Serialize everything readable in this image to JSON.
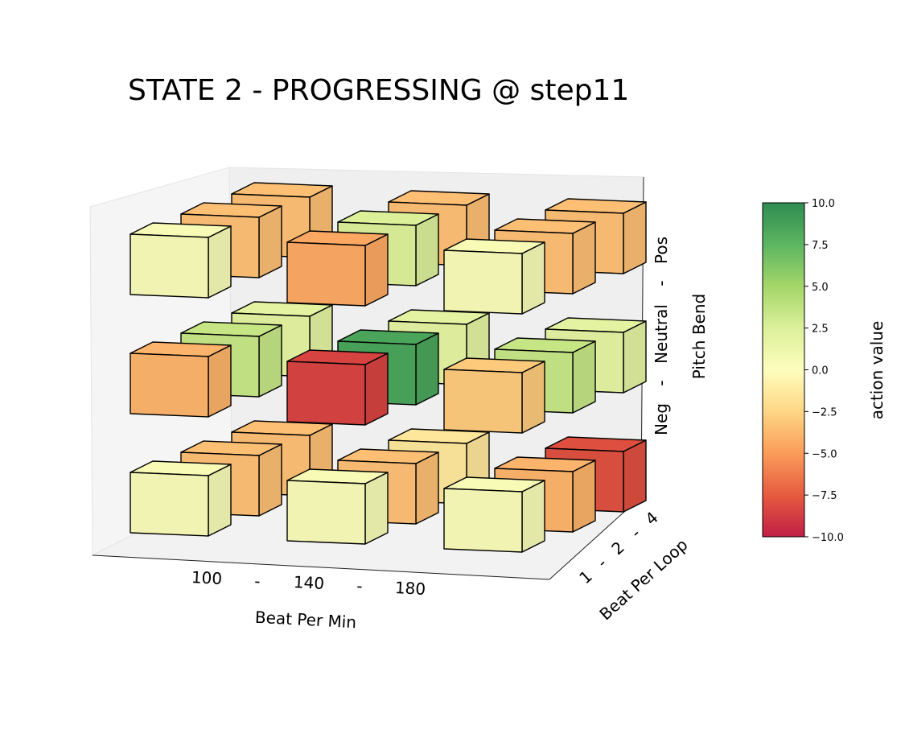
{
  "chart_data": {
    "type": "bar3d",
    "title": "STATE 2 - PROGRESSING @ step11",
    "xlabel": "Beat Per Min",
    "ylabel": "Beat Per Loop",
    "zlabel": "Pitch Bend",
    "x_ticks": [
      "100",
      "-",
      "140",
      "-",
      "180"
    ],
    "y_ticks": [
      "1",
      "-",
      "2",
      "-",
      "4"
    ],
    "z_ticks": [
      "Neg",
      "-",
      "Neutral",
      "-",
      "Pos"
    ],
    "x_categories": [
      "100",
      "140",
      "180"
    ],
    "y_categories": [
      "1",
      "2",
      "4"
    ],
    "z_categories": [
      "Neg",
      "Neutral",
      "Pos"
    ],
    "colorbar": {
      "label": "action value",
      "range": [
        -10,
        10
      ],
      "ticks": [
        "10.0",
        "7.5",
        "5.0",
        "2.5",
        "0.0",
        "−2.5",
        "−5.0",
        "−7.5",
        "−10.0"
      ],
      "colormap": "RdYlGn"
    },
    "cells": [
      {
        "bpm": "100",
        "bpl": "1",
        "pitch": "Neg",
        "value": 0.5
      },
      {
        "bpm": "100",
        "bpl": "2",
        "pitch": "Neg",
        "value": -3.5
      },
      {
        "bpm": "100",
        "bpl": "4",
        "pitch": "Neg",
        "value": -3.5
      },
      {
        "bpm": "140",
        "bpl": "1",
        "pitch": "Neg",
        "value": 0.5
      },
      {
        "bpm": "140",
        "bpl": "2",
        "pitch": "Neg",
        "value": -3.5
      },
      {
        "bpm": "140",
        "bpl": "4",
        "pitch": "Neg",
        "value": -1.5
      },
      {
        "bpm": "180",
        "bpl": "1",
        "pitch": "Neg",
        "value": 0.5
      },
      {
        "bpm": "180",
        "bpl": "2",
        "pitch": "Neg",
        "value": -4.0
      },
      {
        "bpm": "180",
        "bpl": "4",
        "pitch": "Neg",
        "value": -8.0
      },
      {
        "bpm": "100",
        "bpl": "1",
        "pitch": "Neutral",
        "value": -4.0
      },
      {
        "bpm": "100",
        "bpl": "2",
        "pitch": "Neutral",
        "value": 3.5
      },
      {
        "bpm": "100",
        "bpl": "4",
        "pitch": "Neutral",
        "value": 2.0
      },
      {
        "bpm": "140",
        "bpl": "1",
        "pitch": "Neutral",
        "value": -8.5
      },
      {
        "bpm": "140",
        "bpl": "2",
        "pitch": "Neutral",
        "value": 8.5
      },
      {
        "bpm": "140",
        "bpl": "4",
        "pitch": "Neutral",
        "value": 2.0
      },
      {
        "bpm": "180",
        "bpl": "1",
        "pitch": "Neutral",
        "value": -3.0
      },
      {
        "bpm": "180",
        "bpl": "2",
        "pitch": "Neutral",
        "value": 3.5
      },
      {
        "bpm": "180",
        "bpl": "4",
        "pitch": "Neutral",
        "value": 2.0
      },
      {
        "bpm": "100",
        "bpl": "1",
        "pitch": "Pos",
        "value": 0.5
      },
      {
        "bpm": "100",
        "bpl": "2",
        "pitch": "Pos",
        "value": -3.5
      },
      {
        "bpm": "100",
        "bpl": "4",
        "pitch": "Pos",
        "value": -3.5
      },
      {
        "bpm": "140",
        "bpl": "1",
        "pitch": "Pos",
        "value": -4.5
      },
      {
        "bpm": "140",
        "bpl": "2",
        "pitch": "Pos",
        "value": 2.5
      },
      {
        "bpm": "140",
        "bpl": "4",
        "pitch": "Pos",
        "value": -3.5
      },
      {
        "bpm": "180",
        "bpl": "1",
        "pitch": "Pos",
        "value": 0.5
      },
      {
        "bpm": "180",
        "bpl": "2",
        "pitch": "Pos",
        "value": -3.5
      },
      {
        "bpm": "180",
        "bpl": "4",
        "pitch": "Pos",
        "value": -3.5
      }
    ]
  }
}
